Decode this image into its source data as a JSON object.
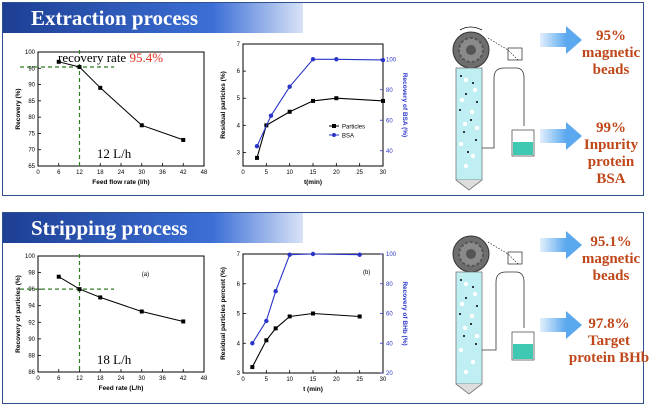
{
  "sections": [
    {
      "banner": "Extraction process",
      "results": [
        {
          "pct": "95%",
          "l1": "magnetic",
          "l2": "beads",
          "l3": ""
        },
        {
          "pct": "99%",
          "l1": "Inpurity",
          "l2": "protein",
          "l3": "BSA"
        }
      ]
    },
    {
      "banner": "Stripping process",
      "results": [
        {
          "pct": "95.1%",
          "l1": "magnetic",
          "l2": "beads",
          "l3": ""
        },
        {
          "pct": "97.8%",
          "l1": "Target",
          "l2": "protein BHb",
          "l3": ""
        }
      ]
    }
  ],
  "chart_data": [
    {
      "type": "line",
      "xlabel": "Feed flow rate (l/h)",
      "ylabel": "Recovery (%)",
      "xlim": [
        0,
        48
      ],
      "ylim": [
        65,
        100
      ],
      "xticks": [
        0,
        6,
        12,
        18,
        24,
        30,
        36,
        42,
        48
      ],
      "yticks": [
        65,
        70,
        75,
        80,
        85,
        90,
        95,
        100
      ],
      "x": [
        6,
        12,
        18,
        30,
        42
      ],
      "values": [
        97,
        95.4,
        89,
        77.5,
        73
      ],
      "marker_x": 12,
      "marker_y": 95.4,
      "annotation_label": "recovery rate ",
      "annotation_value": "95.4%",
      "condition": "12 L/h"
    },
    {
      "type": "line",
      "xlabel": "t(min)",
      "ylabel": "Residual particles (%)",
      "ylabel_right": "Recovery of BSA (%)",
      "xlim": [
        0,
        30
      ],
      "ylim": [
        2.5,
        7
      ],
      "ylim_right": [
        30,
        110
      ],
      "xticks": [
        0,
        5,
        10,
        15,
        20,
        25,
        30
      ],
      "yticks": [
        3,
        4,
        5,
        6,
        7
      ],
      "yticks_right": [
        40,
        60,
        80,
        100
      ],
      "series": [
        {
          "name": "Particles",
          "axis": "left",
          "color": "#000000",
          "x": [
            3,
            5,
            10,
            15,
            20,
            30
          ],
          "values": [
            2.8,
            4.0,
            4.5,
            4.9,
            5.0,
            4.9
          ]
        },
        {
          "name": "BSA",
          "axis": "right",
          "color": "#2a35c8",
          "x": [
            3,
            6,
            10,
            15,
            20,
            30
          ],
          "values": [
            43,
            63,
            82,
            100,
            100,
            99.5
          ]
        }
      ],
      "legend": "bottom-right"
    },
    {
      "type": "line",
      "xlabel": "Feed rate (L/h)",
      "ylabel": "Recovery of particles (%)",
      "xlim": [
        0,
        48
      ],
      "ylim": [
        86,
        100
      ],
      "xticks": [
        0,
        6,
        12,
        18,
        24,
        30,
        36,
        42,
        48
      ],
      "yticks": [
        86,
        88,
        90,
        92,
        94,
        96,
        98,
        100
      ],
      "x": [
        6,
        12,
        18,
        30,
        42
      ],
      "values": [
        97.5,
        96,
        95,
        93.3,
        92.1
      ],
      "marker_x": 12,
      "marker_y": 96,
      "panel_label": "(a)",
      "condition": "18 L/h"
    },
    {
      "type": "line",
      "xlabel": "t (min)",
      "ylabel": "Residual particles percent (%)",
      "ylabel_right": "Recovery of BHb (%)",
      "xlim": [
        0,
        30
      ],
      "ylim": [
        3,
        7
      ],
      "ylim_right": [
        20,
        100
      ],
      "xticks": [
        0,
        5,
        10,
        15,
        20,
        25,
        30
      ],
      "yticks": [
        3,
        4,
        5,
        6,
        7
      ],
      "yticks_right": [
        20,
        40,
        60,
        80,
        100
      ],
      "panel_label": "(b)",
      "series": [
        {
          "name": "",
          "axis": "left",
          "color": "#000000",
          "x": [
            2,
            5,
            7,
            10,
            15,
            25
          ],
          "values": [
            3.2,
            4.1,
            4.5,
            4.9,
            5.0,
            4.9
          ]
        },
        {
          "name": "",
          "axis": "right",
          "color": "#2a35c8",
          "x": [
            2,
            5,
            7,
            10,
            15,
            25
          ],
          "values": [
            40,
            55,
            75,
            99.5,
            100,
            99.5
          ]
        }
      ]
    }
  ]
}
